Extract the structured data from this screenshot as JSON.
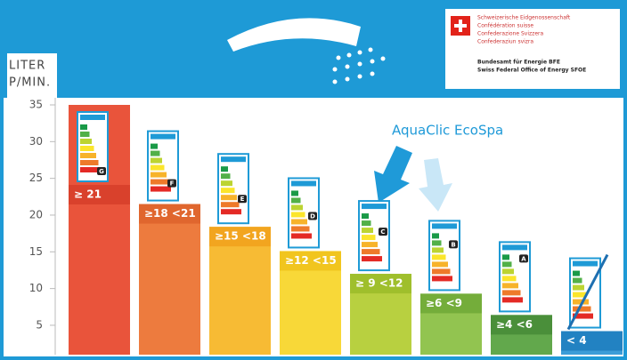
{
  "chart_data": {
    "type": "bar",
    "ylabel": [
      "LITER",
      "P/MIN."
    ],
    "categories": [
      "≥ 21",
      "≥18 <21",
      "≥15 <18",
      "≥12 <15",
      "≥ 9 <12",
      "≥6 <9",
      "≥4 <6",
      "< 4"
    ],
    "values": [
      35,
      21.5,
      18.4,
      15.1,
      12,
      9.3,
      6.4,
      4.2
    ],
    "colors": [
      "#e9543b",
      "#ed7b3e",
      "#f7bb34",
      "#f8d838",
      "#b8d040",
      "#92c450",
      "#62a84c",
      "#3c9dd8"
    ],
    "strip_colors": [
      "#d9412c",
      "#e0662e",
      "#f2a51f",
      "#f1c51e",
      "#9fbf2c",
      "#74ad3a",
      "#4a8f3a",
      "#2282c2"
    ],
    "energy_classes": [
      "G",
      "F",
      "E",
      "D",
      "C",
      "B",
      "A",
      null
    ],
    "ylim": [
      1,
      35
    ],
    "yticks": [
      5,
      10,
      15,
      20,
      25,
      30,
      35
    ],
    "annotation": "AquaClic EcoSpa"
  },
  "logo": {
    "lines": [
      "Schweizerische Eidgenossenschaft",
      "Confédération suisse",
      "Confederazione Svizzera",
      "Confederaziun svizra"
    ],
    "office": [
      "Bundesamt für Energie BFE",
      "Swiss Federal Office of Energy SFOE"
    ]
  }
}
